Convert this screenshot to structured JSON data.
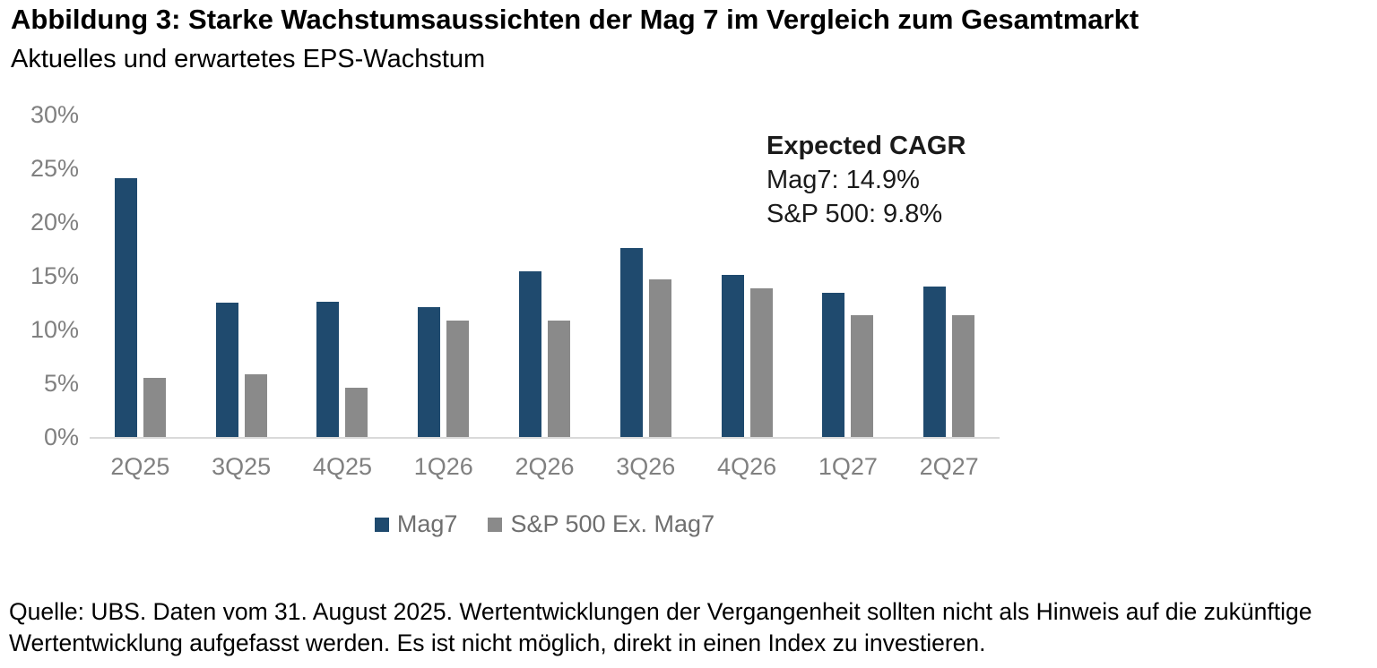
{
  "header": {
    "title": "Abbildung 3: Starke Wachstumsaussichten der Mag 7 im Vergleich zum Gesamtmarkt",
    "subtitle": "Aktuelles und erwartetes EPS-Wachstum"
  },
  "chart_data": {
    "type": "bar",
    "categories": [
      "2Q25",
      "3Q25",
      "4Q25",
      "1Q26",
      "2Q26",
      "3Q26",
      "4Q26",
      "1Q27",
      "2Q27"
    ],
    "series": [
      {
        "name": "Mag7",
        "color": "#1f4a6e",
        "values": [
          24.1,
          12.5,
          12.6,
          12.1,
          15.4,
          17.6,
          15.1,
          13.4,
          14.0
        ]
      },
      {
        "name": "S&P 500 Ex. Mag7",
        "color": "#8a8a8a",
        "values": [
          5.5,
          5.8,
          4.6,
          10.8,
          10.8,
          14.7,
          13.8,
          11.3,
          11.3
        ]
      }
    ],
    "ylim": [
      0,
      30
    ],
    "yticks": [
      0,
      5,
      10,
      15,
      20,
      25,
      30
    ],
    "ytick_suffix": "%",
    "grid": false,
    "legend_position": "bottom",
    "annotation": {
      "title": "Expected CAGR",
      "lines": [
        "Mag7: 14.9%",
        "S&P 500: 9.8%"
      ]
    },
    "colors": {
      "axis_line": "#d9d9d9",
      "tick_label": "#808080",
      "legend_text": "#6f6f6f",
      "annotation_text": "#1a1a1a"
    }
  },
  "footer": {
    "text": "Quelle: UBS. Daten vom 31. August 2025. Wertentwicklungen der Vergangenheit sollten nicht als Hinweis auf die zukünftige Wertentwicklung aufgefasst werden. Es ist nicht möglich, direkt in einen Index zu investieren."
  }
}
